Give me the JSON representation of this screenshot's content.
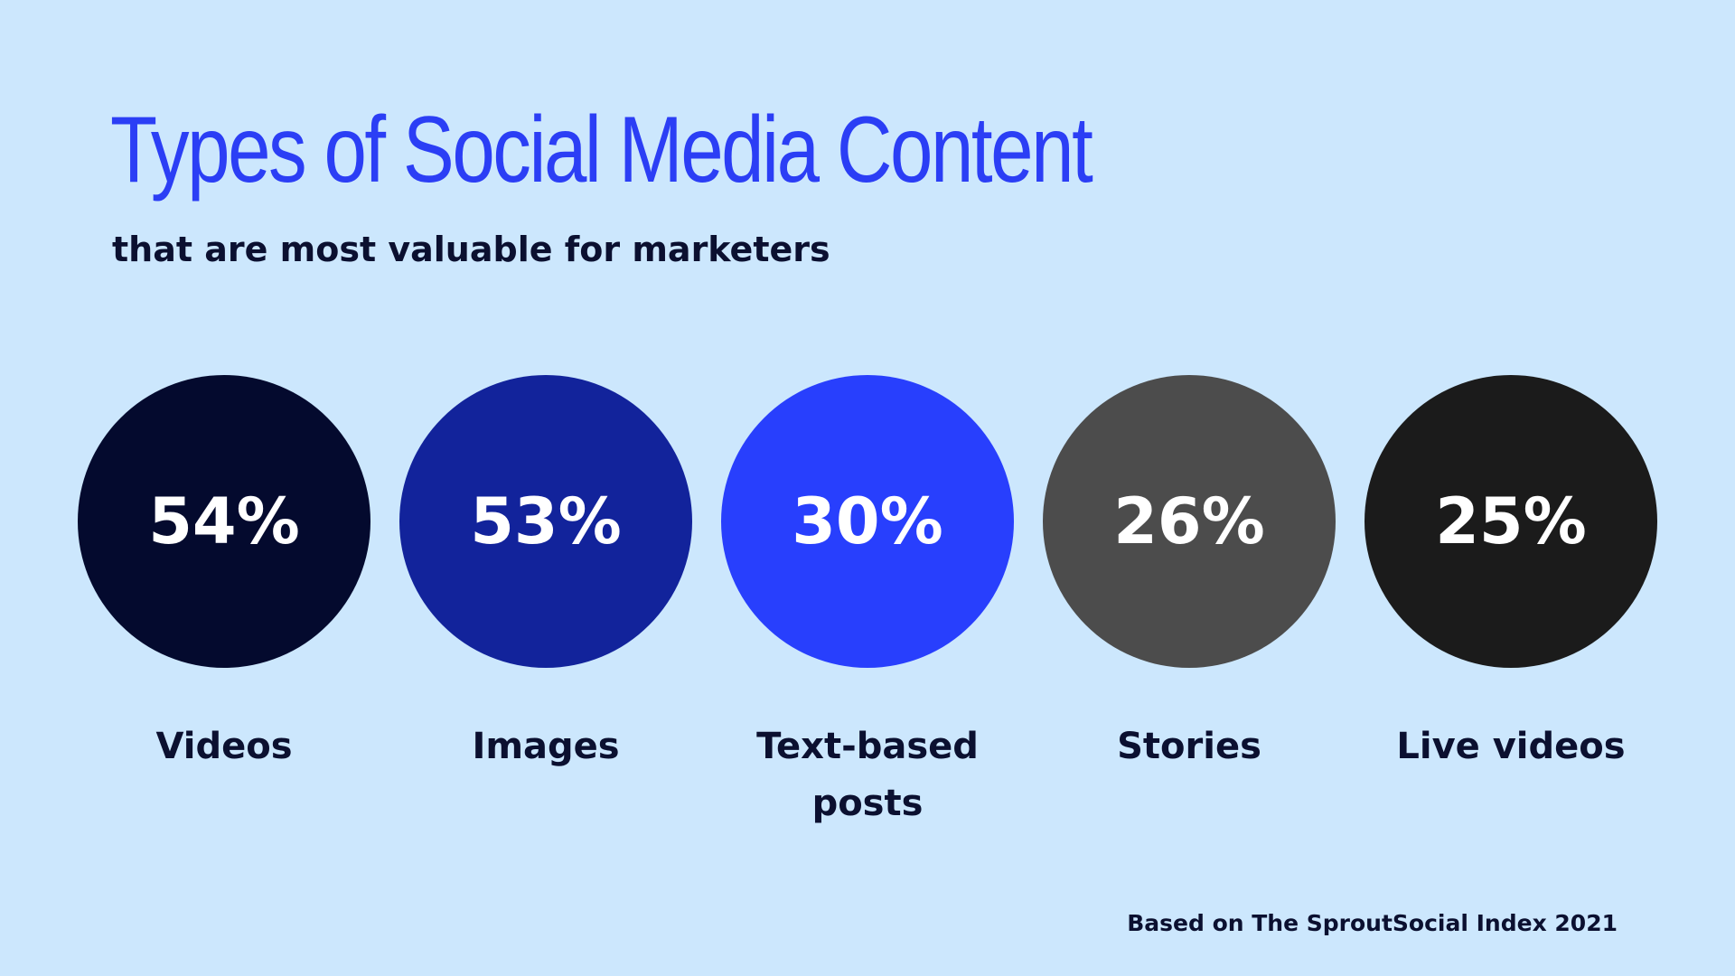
{
  "title": "Types of Social Media Content",
  "subtitle": "that are most valuable for marketers",
  "source": "Based on The SproutSocial Index 2021",
  "colors": {
    "background": "#cce7fd",
    "title": "#2b3ef5",
    "text": "#0b1030",
    "value_text": "#ffffff"
  },
  "chart_data": {
    "type": "bubble",
    "title": "Types of Social Media Content",
    "subtitle": "that are most valuable for marketers",
    "categories": [
      [
        "Videos"
      ],
      [
        "Images"
      ],
      [
        "Text-based",
        "posts"
      ],
      [
        "Stories"
      ],
      [
        "Live videos"
      ]
    ],
    "values": [
      54,
      53,
      30,
      26,
      25
    ],
    "value_labels": [
      "54%",
      "53%",
      "30%",
      "26%",
      "25%"
    ],
    "colors": [
      "#040a2e",
      "#12239b",
      "#283ffd",
      "#4c4c4c",
      "#1b1b1b"
    ],
    "unit": "%",
    "legend": "none"
  }
}
